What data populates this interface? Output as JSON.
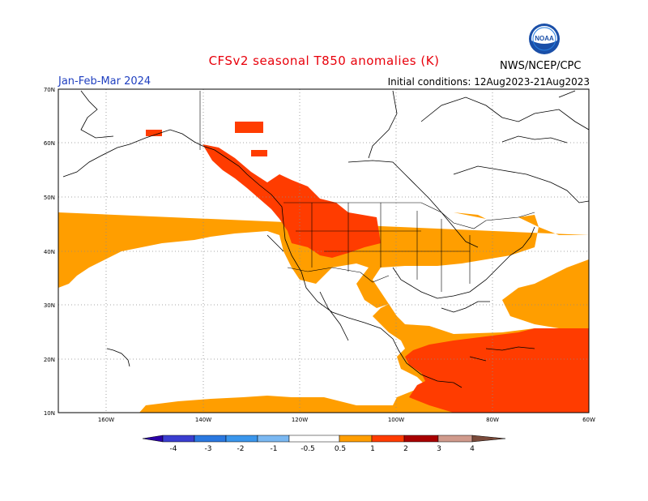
{
  "header": {
    "title": "CFSv2 seasonal T850 anomalies (K)",
    "period": "Jan-Feb-Mar 2024",
    "initial_conditions": "Initial conditions: 12Aug2023-21Aug2023",
    "agency": "NWS/NCEP/CPC",
    "logo_text": "NOAA"
  },
  "axes": {
    "lat_labels": [
      "70N",
      "60N",
      "50N",
      "40N",
      "30N",
      "20N",
      "10N"
    ],
    "lon_labels": [
      "160W",
      "140W",
      "120W",
      "100W",
      "80W",
      "60W"
    ]
  },
  "colorbar": {
    "labels": [
      "-4",
      "-3",
      "-2",
      "-1",
      "-0.5",
      "0.5",
      "1",
      "2",
      "3",
      "4"
    ],
    "colors": {
      "lt4": "#2a00a8",
      "m4_m3": "#3a3ed0",
      "m3_m2": "#2a78e0",
      "m2_m1": "#3a96ec",
      "m1_m05": "#7ab8f2",
      "neutral": "#ffffff",
      "p05_1": "#ff9e00",
      "p1_2": "#ff3c00",
      "p2_3": "#a80000",
      "p3_4": "#d09a8c",
      "gt4": "#7a4a3a"
    }
  },
  "colors": {
    "title": "#e8000b",
    "period": "#2040c0",
    "frame": "#000000"
  }
}
